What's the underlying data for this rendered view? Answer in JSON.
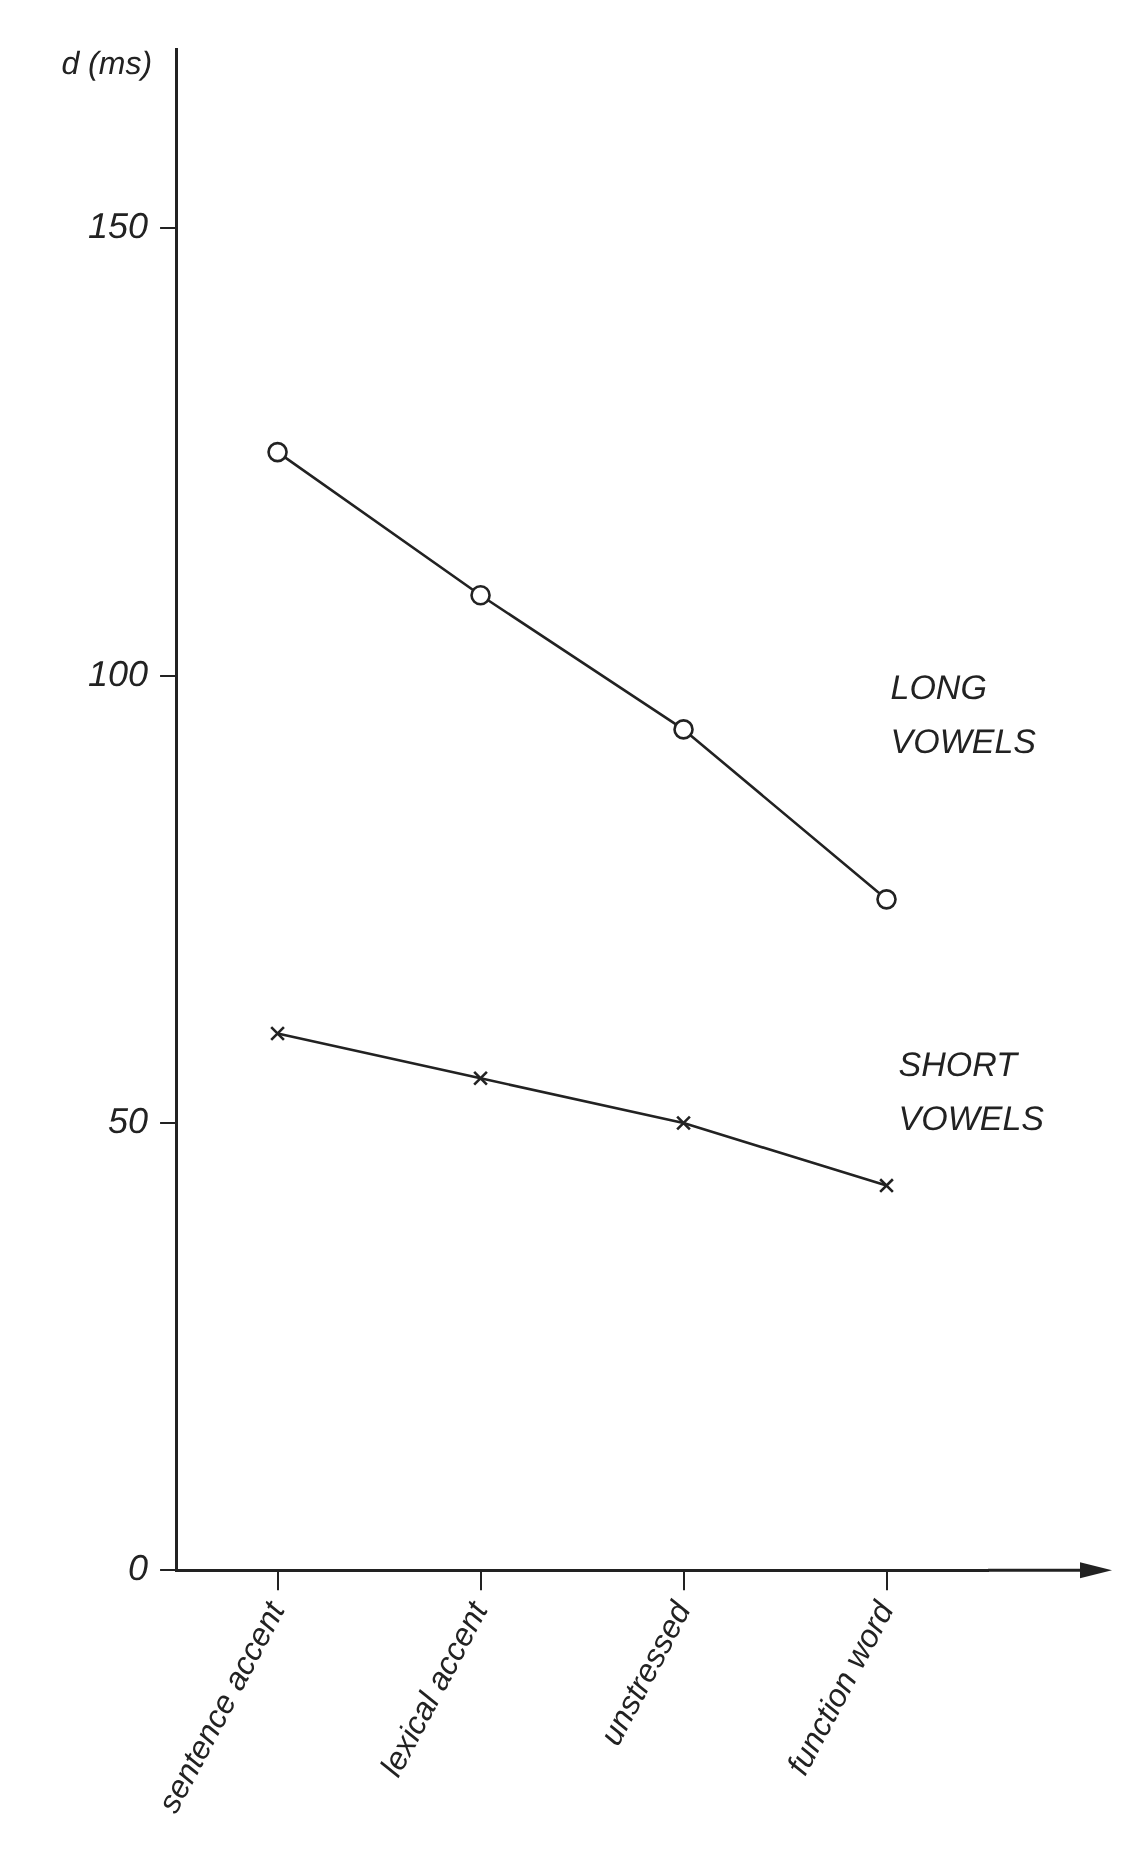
{
  "chart_data": {
    "type": "line",
    "ylabel": "d (ms)",
    "categories": [
      "sentence accent",
      "lexical accent",
      "unstressed",
      "function word"
    ],
    "series": [
      {
        "name": "LONG VOWELS",
        "color": "#222222",
        "marker": "circle",
        "values": [
          125,
          109,
          94,
          75
        ]
      },
      {
        "name": "SHORT VOWELS",
        "color": "#222222",
        "marker": "cross",
        "values": [
          60,
          55,
          50,
          43
        ]
      }
    ],
    "ylim": [
      0,
      170
    ],
    "yticks": [
      0,
      50,
      100,
      150
    ],
    "grid": false,
    "legend": false,
    "line_style": "solid"
  }
}
